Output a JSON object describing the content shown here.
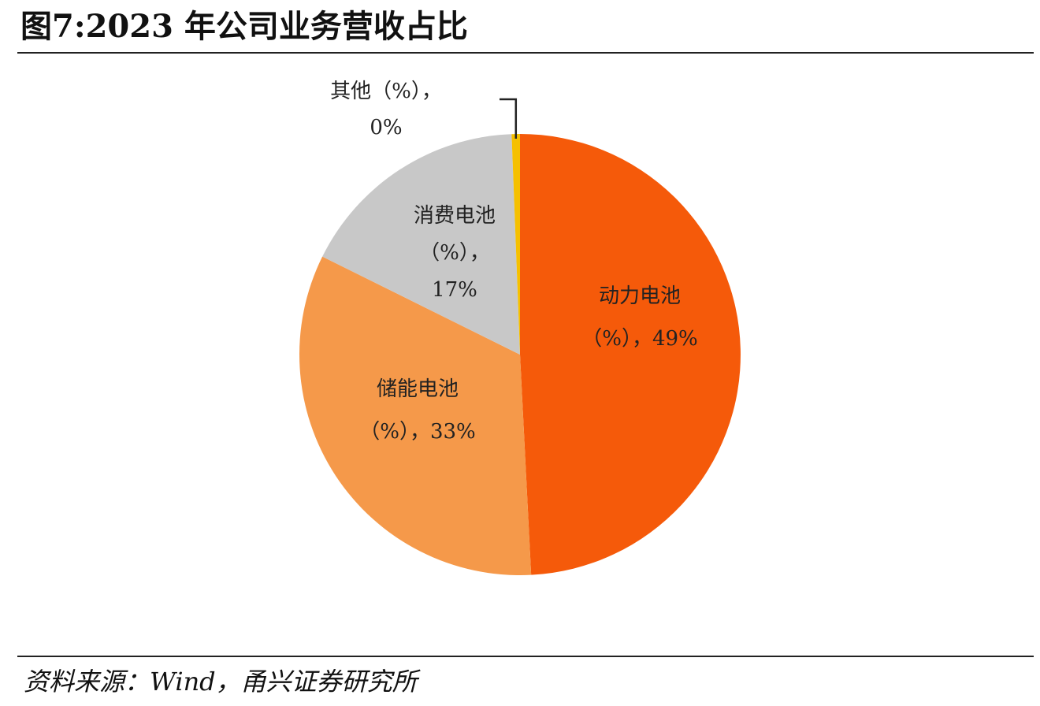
{
  "title": "图7:2023 年公司业务营收占比",
  "source": "资料来源：Wind，甬兴证券研究所",
  "chart_data": {
    "type": "pie",
    "start_angle_deg": 0,
    "direction": "clockwise",
    "slices": [
      {
        "name": "动力电池",
        "value": 49,
        "label_lines": [
          "动力电池",
          "（%），49%"
        ],
        "color": "#F55A0A"
      },
      {
        "name": "储能电池",
        "value": 33,
        "label_lines": [
          "储能电池",
          "（%），33%"
        ],
        "color": "#F5994A"
      },
      {
        "name": "消费电池",
        "value": 17,
        "label_lines": [
          "消费电池",
          "（%），",
          "17%"
        ],
        "color": "#C8C8C8"
      },
      {
        "name": "其他",
        "value": 0,
        "label_lines": [
          "其他（%），",
          "0%"
        ],
        "color": "#F5C000"
      }
    ]
  }
}
